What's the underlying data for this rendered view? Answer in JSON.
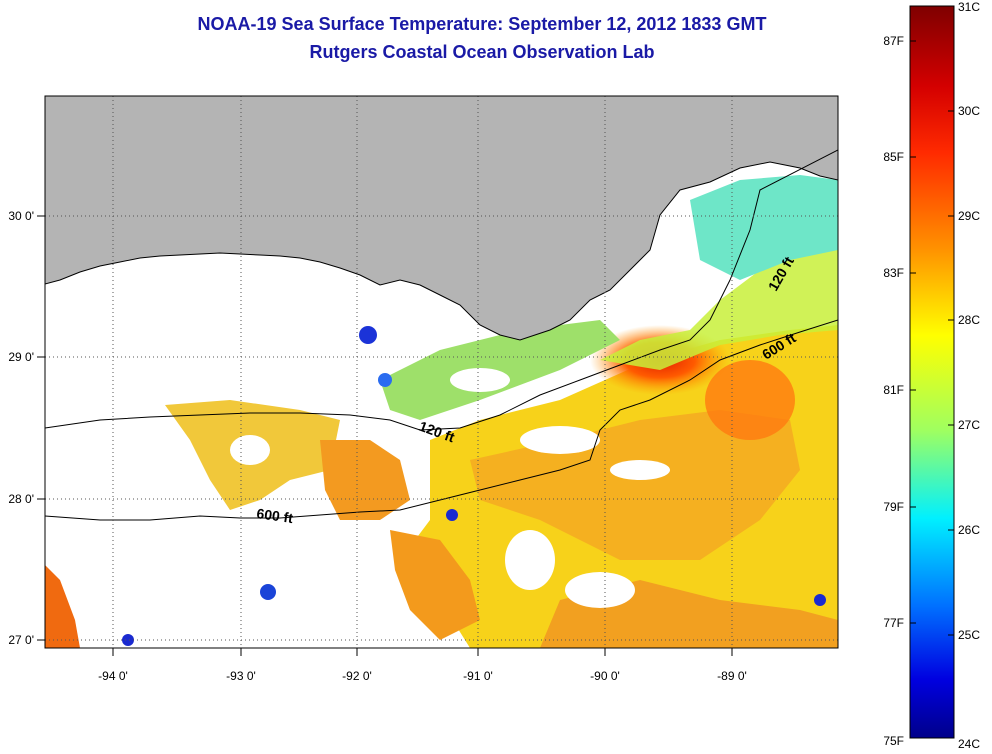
{
  "title_line1": "NOAA-19 Sea Surface Temperature:  September 12, 2012 1833 GMT",
  "title_line2": "Rutgers Coastal Ocean Observation Lab",
  "map": {
    "land_color": "#b4b4b4",
    "coastline_color": "#000000",
    "grid": "dotted",
    "lon_ticks": [
      "-94 0'",
      "-93 0'",
      "-92 0'",
      "-91 0'",
      "-90 0'",
      "-89 0'"
    ],
    "lat_ticks": [
      "30 0'",
      "29 0'",
      "28 0'",
      "27 0'"
    ],
    "contour_labels": {
      "upper_120": "120 ft",
      "upper_600": "600 ft",
      "west_120": "120 ft",
      "west_600": "600 ft"
    }
  },
  "colorbar": {
    "fahrenheit_labels": [
      "87F",
      "85F",
      "83F",
      "81F",
      "79F",
      "77F",
      "75F"
    ],
    "celsius_labels": [
      "31C",
      "30C",
      "29C",
      "28C",
      "27C",
      "26C",
      "25C",
      "24C"
    ],
    "colors_top_to_bottom": [
      "#7f0000",
      "#ff0000",
      "#ff8000",
      "#ffff00",
      "#80ff80",
      "#00ffff",
      "#0080ff",
      "#0000ff",
      "#00008f"
    ]
  }
}
